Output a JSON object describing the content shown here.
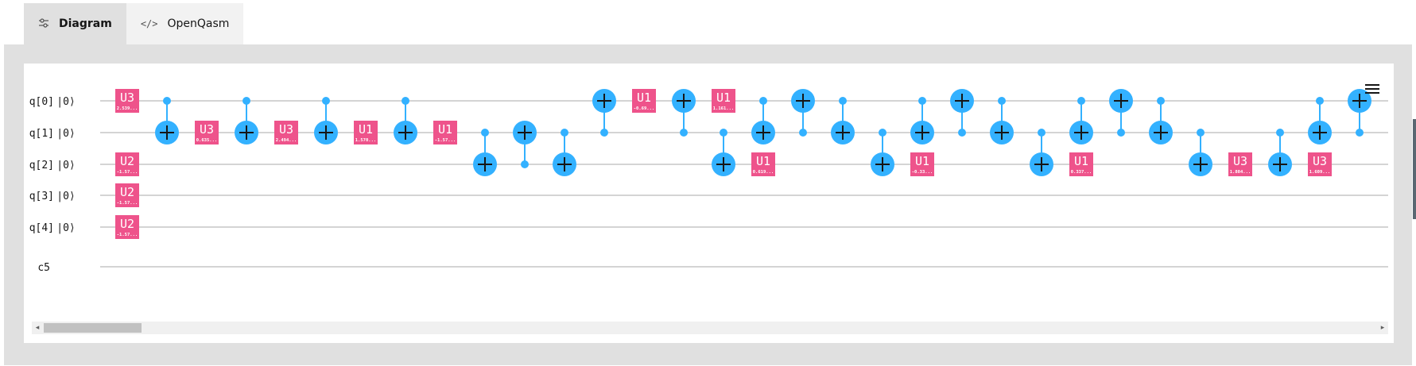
{
  "tabs": {
    "diagram": {
      "label": "Diagram",
      "icon": "settings-adjust-icon"
    },
    "openqasm": {
      "label": "OpenQasm",
      "icon": "code-icon"
    }
  },
  "circuit": {
    "qubits": [
      {
        "label": "q[0]",
        "ket": "|0⟩"
      },
      {
        "label": "q[1]",
        "ket": "|0⟩"
      },
      {
        "label": "q[2]",
        "ket": "|0⟩"
      },
      {
        "label": "q[3]",
        "ket": "|0⟩"
      },
      {
        "label": "q[4]",
        "ket": "|0⟩"
      }
    ],
    "classical": {
      "label": "c5"
    },
    "gate_color": "#ee538b",
    "cnot_color": "#33b1ff",
    "wire_color": "#a8a8a8",
    "gates": [
      {
        "name": "U3",
        "param": "2.539...",
        "qubit": 0,
        "col": 0
      },
      {
        "name": "U2",
        "param": "-1.57...",
        "qubit": 2,
        "col": 0
      },
      {
        "name": "U2",
        "param": "-1.57...",
        "qubit": 3,
        "col": 0
      },
      {
        "name": "U2",
        "param": "-1.57...",
        "qubit": 4,
        "col": 0
      },
      {
        "name": "U3",
        "param": "0.635...",
        "qubit": 1,
        "col": 2
      },
      {
        "name": "U3",
        "param": "2.494...",
        "qubit": 1,
        "col": 4
      },
      {
        "name": "U1",
        "param": "1.570...",
        "qubit": 1,
        "col": 6
      },
      {
        "name": "U1",
        "param": "-1.57...",
        "qubit": 1,
        "col": 8
      },
      {
        "name": "U1",
        "param": "-0.69...",
        "qubit": 0,
        "col": 13
      },
      {
        "name": "U1",
        "param": "1.161...",
        "qubit": 0,
        "col": 15
      },
      {
        "name": "U1",
        "param": "0.619...",
        "qubit": 2,
        "col": 16
      },
      {
        "name": "U1",
        "param": "-0.33...",
        "qubit": 2,
        "col": 20
      },
      {
        "name": "U1",
        "param": "0.337...",
        "qubit": 2,
        "col": 24
      },
      {
        "name": "U3",
        "param": "1.804...",
        "qubit": 2,
        "col": 28
      },
      {
        "name": "U3",
        "param": "1.609...",
        "qubit": 2,
        "col": 30
      }
    ],
    "cnots": [
      {
        "control": 0,
        "target": 1,
        "col": 1
      },
      {
        "control": 0,
        "target": 1,
        "col": 3
      },
      {
        "control": 0,
        "target": 1,
        "col": 5
      },
      {
        "control": 0,
        "target": 1,
        "col": 7
      },
      {
        "control": 1,
        "target": 2,
        "col": 9
      },
      {
        "control": 2,
        "target": 1,
        "col": 10
      },
      {
        "control": 1,
        "target": 2,
        "col": 11
      },
      {
        "control": 1,
        "target": 0,
        "col": 12
      },
      {
        "control": 1,
        "target": 0,
        "col": 14
      },
      {
        "control": 1,
        "target": 2,
        "col": 15
      },
      {
        "control": 0,
        "target": 1,
        "col": 16
      },
      {
        "control": 1,
        "target": 0,
        "col": 17
      },
      {
        "control": 0,
        "target": 1,
        "col": 18
      },
      {
        "control": 1,
        "target": 2,
        "col": 19
      },
      {
        "control": 0,
        "target": 1,
        "col": 20
      },
      {
        "control": 1,
        "target": 0,
        "col": 21
      },
      {
        "control": 0,
        "target": 1,
        "col": 22
      },
      {
        "control": 1,
        "target": 2,
        "col": 23
      },
      {
        "control": 0,
        "target": 1,
        "col": 24
      },
      {
        "control": 1,
        "target": 0,
        "col": 25
      },
      {
        "control": 0,
        "target": 1,
        "col": 26
      },
      {
        "control": 1,
        "target": 2,
        "col": 27
      },
      {
        "control": 1,
        "target": 2,
        "col": 29
      },
      {
        "control": 0,
        "target": 1,
        "col": 30
      },
      {
        "control": 1,
        "target": 0,
        "col": 31
      }
    ]
  },
  "menu": {
    "icon": "hamburger-menu-icon"
  },
  "scrollbar": {
    "left_arrow": "◂",
    "right_arrow": "▸",
    "position": 0
  }
}
